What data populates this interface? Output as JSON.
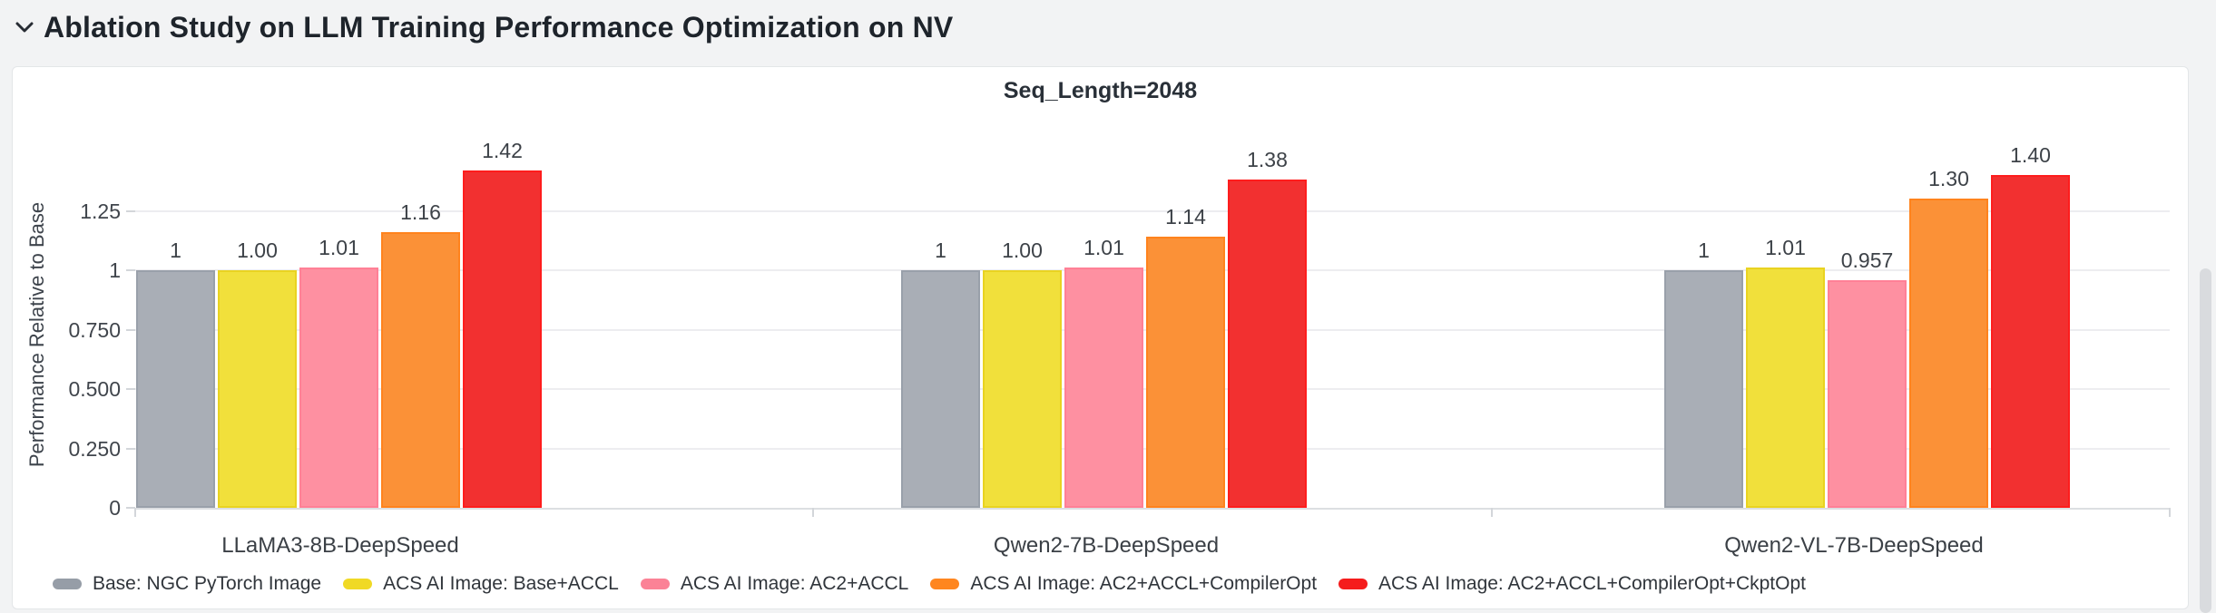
{
  "header": {
    "title": "Ablation Study on LLM Training Performance Optimization on NV"
  },
  "panel": {
    "title": "Seq_Length=2048"
  },
  "chart_data": {
    "type": "bar",
    "title": "Seq_Length=2048",
    "xlabel": "",
    "ylabel": "Performance Relative to Base",
    "ylim": [
      0,
      1.5
    ],
    "grid": true,
    "legend_position": "bottom-left",
    "categories": [
      "LLaMA3-8B-DeepSpeed",
      "Qwen2-7B-DeepSpeed",
      "Qwen2-VL-7B-DeepSpeed"
    ],
    "yticks": [
      {
        "value": 0,
        "label": "0"
      },
      {
        "value": 0.25,
        "label": "0.250"
      },
      {
        "value": 0.5,
        "label": "0.500"
      },
      {
        "value": 0.75,
        "label": "0.750"
      },
      {
        "value": 1,
        "label": "1"
      },
      {
        "value": 1.25,
        "label": "1.25"
      }
    ],
    "series": [
      {
        "name": "Base: NGC PyTorch Image",
        "fill": "#a9aeb6",
        "border": "#99a0aa",
        "marker": "#969da7",
        "values": [
          1,
          1,
          1
        ],
        "labels": [
          "1",
          "1",
          "1"
        ]
      },
      {
        "name": "ACS AI Image: Base+ACCL",
        "fill": "#f1e03b",
        "border": "#e9d321",
        "marker": "#f0d925",
        "values": [
          1.0,
          1.0,
          1.01
        ],
        "labels": [
          "1.00",
          "1.00",
          "1.01"
        ]
      },
      {
        "name": "ACS AI Image: AC2+ACCL",
        "fill": "#fe90a1",
        "border": "#ff8096",
        "marker": "#fb8296",
        "values": [
          1.01,
          1.01,
          0.957
        ],
        "labels": [
          "1.01",
          "1.01",
          "0.957"
        ]
      },
      {
        "name": "ACS AI Image: AC2+ACCL+CompilerOpt",
        "fill": "#fb9137",
        "border": "#ff831d",
        "marker": "#ff861f",
        "values": [
          1.16,
          1.14,
          1.3
        ],
        "labels": [
          "1.16",
          "1.14",
          "1.30"
        ]
      },
      {
        "name": "ACS AI Image: AC2+ACCL+CompilerOpt+CkptOpt",
        "fill": "#f23030",
        "border": "#fe1d1d",
        "marker": "#f51c1c",
        "values": [
          1.42,
          1.38,
          1.4
        ],
        "labels": [
          "1.42",
          "1.38",
          "1.40"
        ]
      }
    ]
  },
  "scrollbar": {
    "present": true
  }
}
